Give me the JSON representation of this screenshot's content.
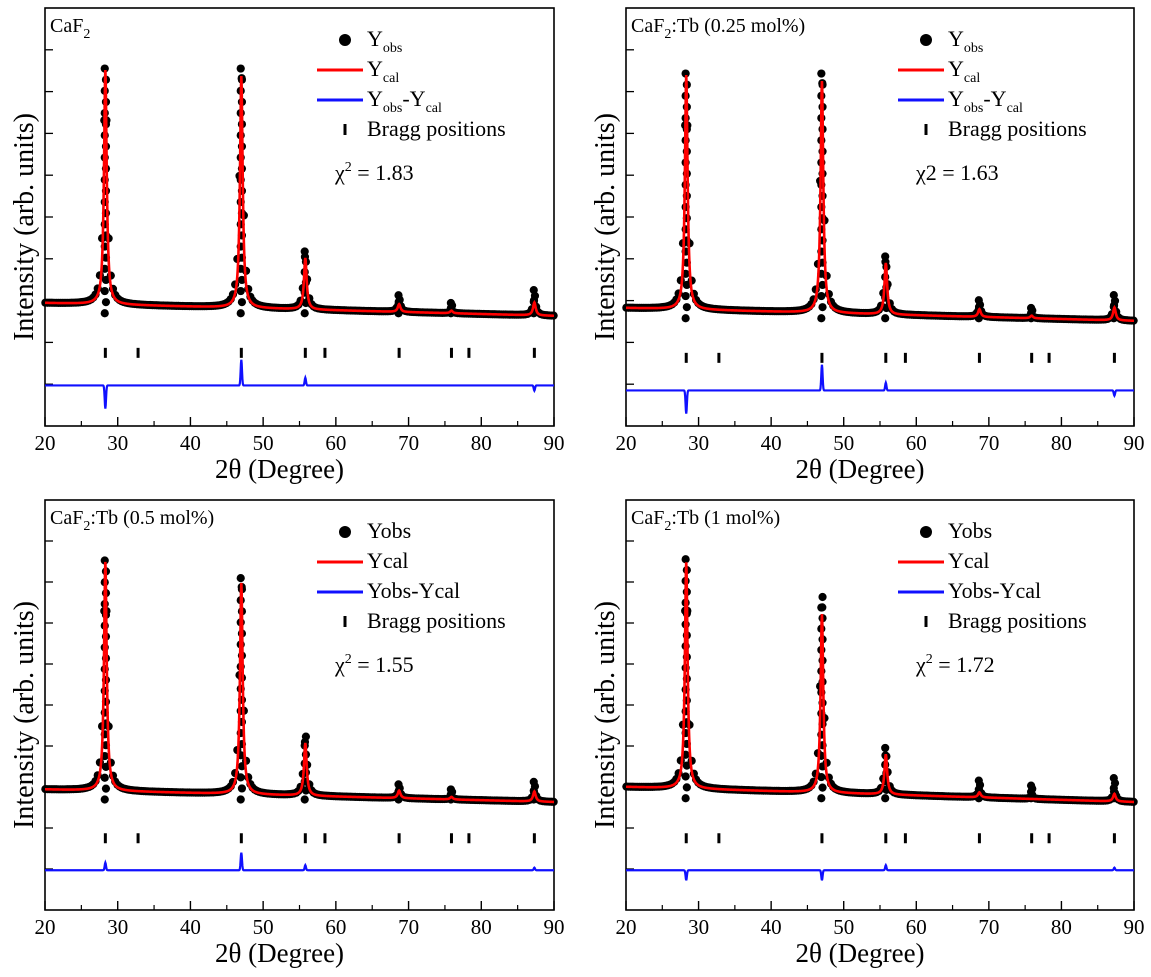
{
  "chart_data": [
    {
      "type": "scatter",
      "title": "",
      "sample_label": {
        "main": "CaF",
        "sub": "2",
        "tail": ""
      },
      "xlabel": "2θ (Degree)",
      "ylabel": "Intensity (arb. units)",
      "xlim": [
        20,
        90
      ],
      "x_ticks": [
        "20",
        "30",
        "40",
        "50",
        "60",
        "70",
        "80",
        "90"
      ],
      "legend": {
        "placement": "top-right",
        "entries": [
          {
            "symbol": "dot",
            "main": "Y",
            "sub": "obs",
            "mid": "",
            "sub2": ""
          },
          {
            "symbol": "red-line",
            "main": "Y",
            "sub": "cal",
            "mid": "",
            "sub2": ""
          },
          {
            "symbol": "blue-line",
            "main": "Y",
            "sub": "obs",
            "mid": "-Y",
            "sub2": "cal"
          },
          {
            "symbol": "tick",
            "main": "Bragg positions",
            "sub": "",
            "mid": "",
            "sub2": ""
          }
        ],
        "chi": {
          "chi": "χ",
          "sup": "2",
          "rest": " = 1.83"
        }
      },
      "series": [
        {
          "name": "Yobs",
          "peaks": [
            {
              "x": 28.3,
              "y": 1.0
            },
            {
              "x": 47.0,
              "y": 1.0
            },
            {
              "x": 55.8,
              "y": 0.29
            },
            {
              "x": 68.7,
              "y": 0.12
            },
            {
              "x": 75.9,
              "y": 0.09
            },
            {
              "x": 87.3,
              "y": 0.14
            }
          ],
          "baseline_start": 0.08,
          "baseline_end": 0.03
        },
        {
          "name": "Ycal",
          "peaks": [
            {
              "x": 28.3,
              "y": 0.99
            },
            {
              "x": 47.0,
              "y": 0.98
            },
            {
              "x": 55.8,
              "y": 0.28
            },
            {
              "x": 68.7,
              "y": 0.11
            },
            {
              "x": 75.9,
              "y": 0.09
            },
            {
              "x": 87.3,
              "y": 0.13
            }
          ]
        },
        {
          "name": "Yobs-Ycal",
          "features": [
            {
              "x": 28.3,
              "dy": -0.09
            },
            {
              "x": 47.0,
              "dy": 0.1
            },
            {
              "x": 55.8,
              "dy": 0.03
            },
            {
              "x": 87.3,
              "dy": -0.02
            }
          ]
        }
      ],
      "bragg_positions": [
        28.3,
        32.8,
        47.0,
        55.8,
        58.5,
        68.7,
        75.9,
        78.3,
        87.3
      ]
    },
    {
      "type": "scatter",
      "title": "",
      "sample_label": {
        "main": "CaF",
        "sub": "2",
        "tail": ":Tb (0.25 mol%)"
      },
      "xlabel": "2θ (Degree)",
      "ylabel": "Intensity (arb. units)",
      "xlim": [
        20,
        90
      ],
      "x_ticks": [
        "20",
        "30",
        "40",
        "50",
        "60",
        "70",
        "80",
        "90"
      ],
      "legend": {
        "placement": "top-right",
        "entries": [
          {
            "symbol": "dot",
            "main": "Y",
            "sub": "obs",
            "mid": "",
            "sub2": ""
          },
          {
            "symbol": "red-line",
            "main": "Y",
            "sub": "cal",
            "mid": "",
            "sub2": ""
          },
          {
            "symbol": "blue-line",
            "main": "Y",
            "sub": "obs",
            "mid": "-Y",
            "sub2": "cal"
          },
          {
            "symbol": "tick",
            "main": "Bragg positions",
            "sub": "",
            "mid": "",
            "sub2": ""
          }
        ],
        "chi": {
          "chi": "χ2",
          "sup": "",
          "rest": " = 1.63"
        }
      },
      "series": [
        {
          "name": "Yobs",
          "peaks": [
            {
              "x": 28.3,
              "y": 1.0
            },
            {
              "x": 47.0,
              "y": 1.0
            },
            {
              "x": 55.8,
              "y": 0.29
            },
            {
              "x": 68.7,
              "y": 0.12
            },
            {
              "x": 75.9,
              "y": 0.09
            },
            {
              "x": 87.3,
              "y": 0.14
            }
          ],
          "baseline_start": 0.08,
          "baseline_end": 0.03
        },
        {
          "name": "Ycal",
          "peaks": [
            {
              "x": 28.3,
              "y": 0.99
            },
            {
              "x": 47.0,
              "y": 0.98
            },
            {
              "x": 55.8,
              "y": 0.28
            },
            {
              "x": 68.7,
              "y": 0.11
            },
            {
              "x": 75.9,
              "y": 0.09
            },
            {
              "x": 87.3,
              "y": 0.13
            }
          ]
        },
        {
          "name": "Yobs-Ycal",
          "features": [
            {
              "x": 28.3,
              "dy": -0.09
            },
            {
              "x": 47.0,
              "dy": 0.1
            },
            {
              "x": 55.8,
              "dy": 0.03
            },
            {
              "x": 87.3,
              "dy": -0.02
            }
          ]
        }
      ],
      "bragg_positions": [
        28.3,
        32.8,
        47.0,
        55.8,
        58.5,
        68.7,
        75.9,
        78.3,
        87.3
      ]
    },
    {
      "type": "scatter",
      "title": "",
      "sample_label": {
        "main": "CaF",
        "sub": "2",
        "tail": ":Tb (0.5 mol%)"
      },
      "xlabel": "2θ (Degree)",
      "ylabel": "Intensity (arb. units)",
      "xlim": [
        20,
        90
      ],
      "x_ticks": [
        "20",
        "30",
        "40",
        "50",
        "60",
        "70",
        "80",
        "90"
      ],
      "legend": {
        "placement": "top-right",
        "entries": [
          {
            "symbol": "dot",
            "main": "Yobs",
            "sub": "",
            "mid": "",
            "sub2": ""
          },
          {
            "symbol": "red-line",
            "main": "Ycal",
            "sub": "",
            "mid": "",
            "sub2": ""
          },
          {
            "symbol": "blue-line",
            "main": "Yobs-Ycal",
            "sub": "",
            "mid": "",
            "sub2": ""
          },
          {
            "symbol": "tick",
            "main": "Bragg positions",
            "sub": "",
            "mid": "",
            "sub2": ""
          }
        ],
        "chi": {
          "chi": "χ",
          "sup": "2",
          "rest": " = 1.55"
        }
      },
      "series": [
        {
          "name": "Yobs",
          "peaks": [
            {
              "x": 28.3,
              "y": 1.0
            },
            {
              "x": 47.0,
              "y": 0.93
            },
            {
              "x": 55.8,
              "y": 0.3
            },
            {
              "x": 68.7,
              "y": 0.11
            },
            {
              "x": 75.9,
              "y": 0.09
            },
            {
              "x": 87.3,
              "y": 0.12
            }
          ],
          "baseline_start": 0.08,
          "baseline_end": 0.03
        },
        {
          "name": "Ycal",
          "peaks": [
            {
              "x": 28.3,
              "y": 0.99
            },
            {
              "x": 47.0,
              "y": 0.92
            },
            {
              "x": 55.8,
              "y": 0.29
            },
            {
              "x": 68.7,
              "y": 0.11
            },
            {
              "x": 75.9,
              "y": 0.09
            },
            {
              "x": 87.3,
              "y": 0.12
            }
          ]
        },
        {
          "name": "Yobs-Ycal",
          "features": [
            {
              "x": 28.3,
              "dy": 0.03
            },
            {
              "x": 47.0,
              "dy": 0.07
            },
            {
              "x": 55.8,
              "dy": 0.02
            },
            {
              "x": 87.3,
              "dy": 0.01
            }
          ]
        }
      ],
      "bragg_positions": [
        28.3,
        32.8,
        47.0,
        55.8,
        58.5,
        68.7,
        75.9,
        78.3,
        87.3
      ]
    },
    {
      "type": "scatter",
      "title": "",
      "sample_label": {
        "main": "CaF",
        "sub": "2",
        "tail": ":Tb (1 mol%)"
      },
      "xlabel": "2θ (Degree)",
      "ylabel": "Intensity (arb. units)",
      "xlim": [
        20,
        90
      ],
      "x_ticks": [
        "20",
        "30",
        "40",
        "50",
        "60",
        "70",
        "80",
        "90"
      ],
      "legend": {
        "placement": "top-right",
        "entries": [
          {
            "symbol": "dot",
            "main": "Yobs",
            "sub": "",
            "mid": "",
            "sub2": ""
          },
          {
            "symbol": "red-line",
            "main": "Ycal",
            "sub": "",
            "mid": "",
            "sub2": ""
          },
          {
            "symbol": "blue-line",
            "main": "Yobs-Ycal",
            "sub": "",
            "mid": "",
            "sub2": ""
          },
          {
            "symbol": "tick",
            "main": "Bragg positions",
            "sub": "",
            "mid": "",
            "sub2": ""
          }
        ],
        "chi": {
          "chi": "χ",
          "sup": "2",
          "rest": " = 1.72"
        }
      },
      "series": [
        {
          "name": "Yobs",
          "peaks": [
            {
              "x": 28.3,
              "y": 1.0
            },
            {
              "x": 47.0,
              "y": 0.85
            },
            {
              "x": 55.8,
              "y": 0.25
            },
            {
              "x": 68.7,
              "y": 0.12
            },
            {
              "x": 75.9,
              "y": 0.1
            },
            {
              "x": 87.3,
              "y": 0.13
            }
          ],
          "baseline_start": 0.09,
          "baseline_end": 0.03
        },
        {
          "name": "Ycal",
          "peaks": [
            {
              "x": 28.3,
              "y": 0.99
            },
            {
              "x": 47.0,
              "y": 0.8
            },
            {
              "x": 55.8,
              "y": 0.25
            },
            {
              "x": 68.7,
              "y": 0.11
            },
            {
              "x": 75.9,
              "y": 0.09
            },
            {
              "x": 87.3,
              "y": 0.12
            }
          ]
        },
        {
          "name": "Yobs-Ycal",
          "features": [
            {
              "x": 28.3,
              "dy": -0.04
            },
            {
              "x": 47.0,
              "dy": -0.04
            },
            {
              "x": 55.8,
              "dy": 0.02
            },
            {
              "x": 87.3,
              "dy": 0.01
            }
          ]
        }
      ],
      "bragg_positions": [
        28.3,
        32.8,
        47.0,
        55.8,
        58.5,
        68.7,
        75.9,
        78.3,
        87.3
      ]
    }
  ]
}
